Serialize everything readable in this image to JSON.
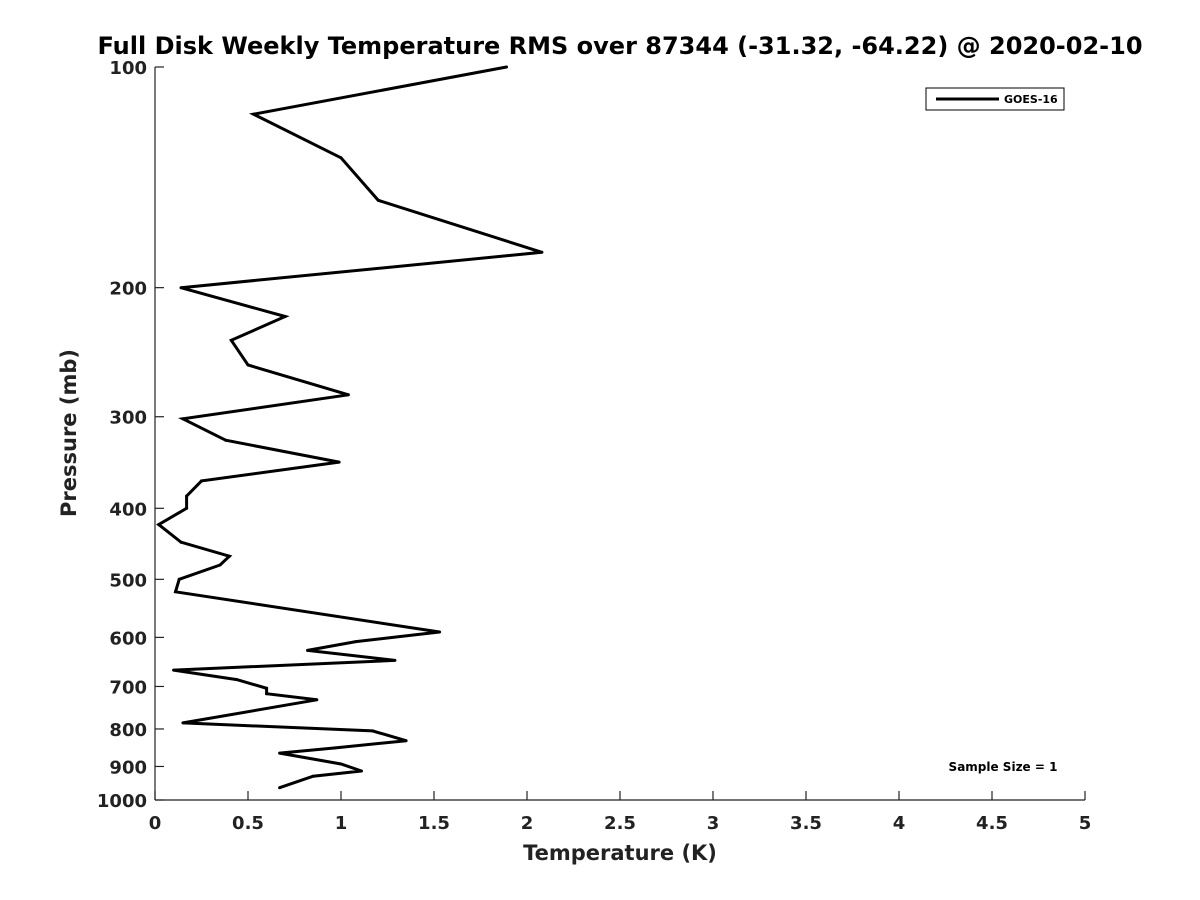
{
  "chart_data": {
    "type": "line",
    "title": "Full Disk Weekly Temperature RMS over 87344 (-31.32, -64.22) @ 2020-02-10",
    "xlabel": "Temperature (K)",
    "ylabel": "Pressure (mb)",
    "xlim": [
      0,
      5
    ],
    "ylim": [
      100,
      1000
    ],
    "y_scale": "log",
    "y_reversed": true,
    "grid": false,
    "legend_position": "top-right",
    "x_ticks": [
      "0",
      "0.5",
      "1",
      "1.5",
      "2",
      "2.5",
      "3",
      "3.5",
      "4",
      "4.5",
      "5"
    ],
    "y_ticks": [
      "100",
      "200",
      "300",
      "400",
      "500",
      "600",
      "700",
      "800",
      "900",
      "1000"
    ],
    "series": [
      {
        "name": "GOES-16",
        "color": "#000000",
        "points": [
          {
            "x": 1.89,
            "y": 100
          },
          {
            "x": 0.53,
            "y": 116
          },
          {
            "x": 1.0,
            "y": 133
          },
          {
            "x": 1.2,
            "y": 152
          },
          {
            "x": 2.08,
            "y": 179
          },
          {
            "x": 0.14,
            "y": 200
          },
          {
            "x": 0.7,
            "y": 219
          },
          {
            "x": 0.41,
            "y": 236
          },
          {
            "x": 0.5,
            "y": 255
          },
          {
            "x": 1.04,
            "y": 280
          },
          {
            "x": 0.15,
            "y": 302
          },
          {
            "x": 0.38,
            "y": 323
          },
          {
            "x": 0.99,
            "y": 346
          },
          {
            "x": 0.25,
            "y": 367
          },
          {
            "x": 0.17,
            "y": 385
          },
          {
            "x": 0.17,
            "y": 400
          },
          {
            "x": 0.02,
            "y": 421
          },
          {
            "x": 0.14,
            "y": 445
          },
          {
            "x": 0.4,
            "y": 465
          },
          {
            "x": 0.35,
            "y": 478
          },
          {
            "x": 0.13,
            "y": 500
          },
          {
            "x": 0.11,
            "y": 520
          },
          {
            "x": 1.53,
            "y": 590
          },
          {
            "x": 1.08,
            "y": 608
          },
          {
            "x": 0.82,
            "y": 625
          },
          {
            "x": 1.29,
            "y": 645
          },
          {
            "x": 0.1,
            "y": 665
          },
          {
            "x": 0.44,
            "y": 685
          },
          {
            "x": 0.6,
            "y": 704
          },
          {
            "x": 0.6,
            "y": 716
          },
          {
            "x": 0.87,
            "y": 730
          },
          {
            "x": 0.15,
            "y": 785
          },
          {
            "x": 1.17,
            "y": 805
          },
          {
            "x": 1.35,
            "y": 830
          },
          {
            "x": 0.97,
            "y": 849
          },
          {
            "x": 0.67,
            "y": 863
          },
          {
            "x": 1.0,
            "y": 893
          },
          {
            "x": 1.11,
            "y": 913
          },
          {
            "x": 0.85,
            "y": 928
          },
          {
            "x": 0.67,
            "y": 962
          }
        ]
      }
    ],
    "annotation": "Sample Size = 1"
  }
}
